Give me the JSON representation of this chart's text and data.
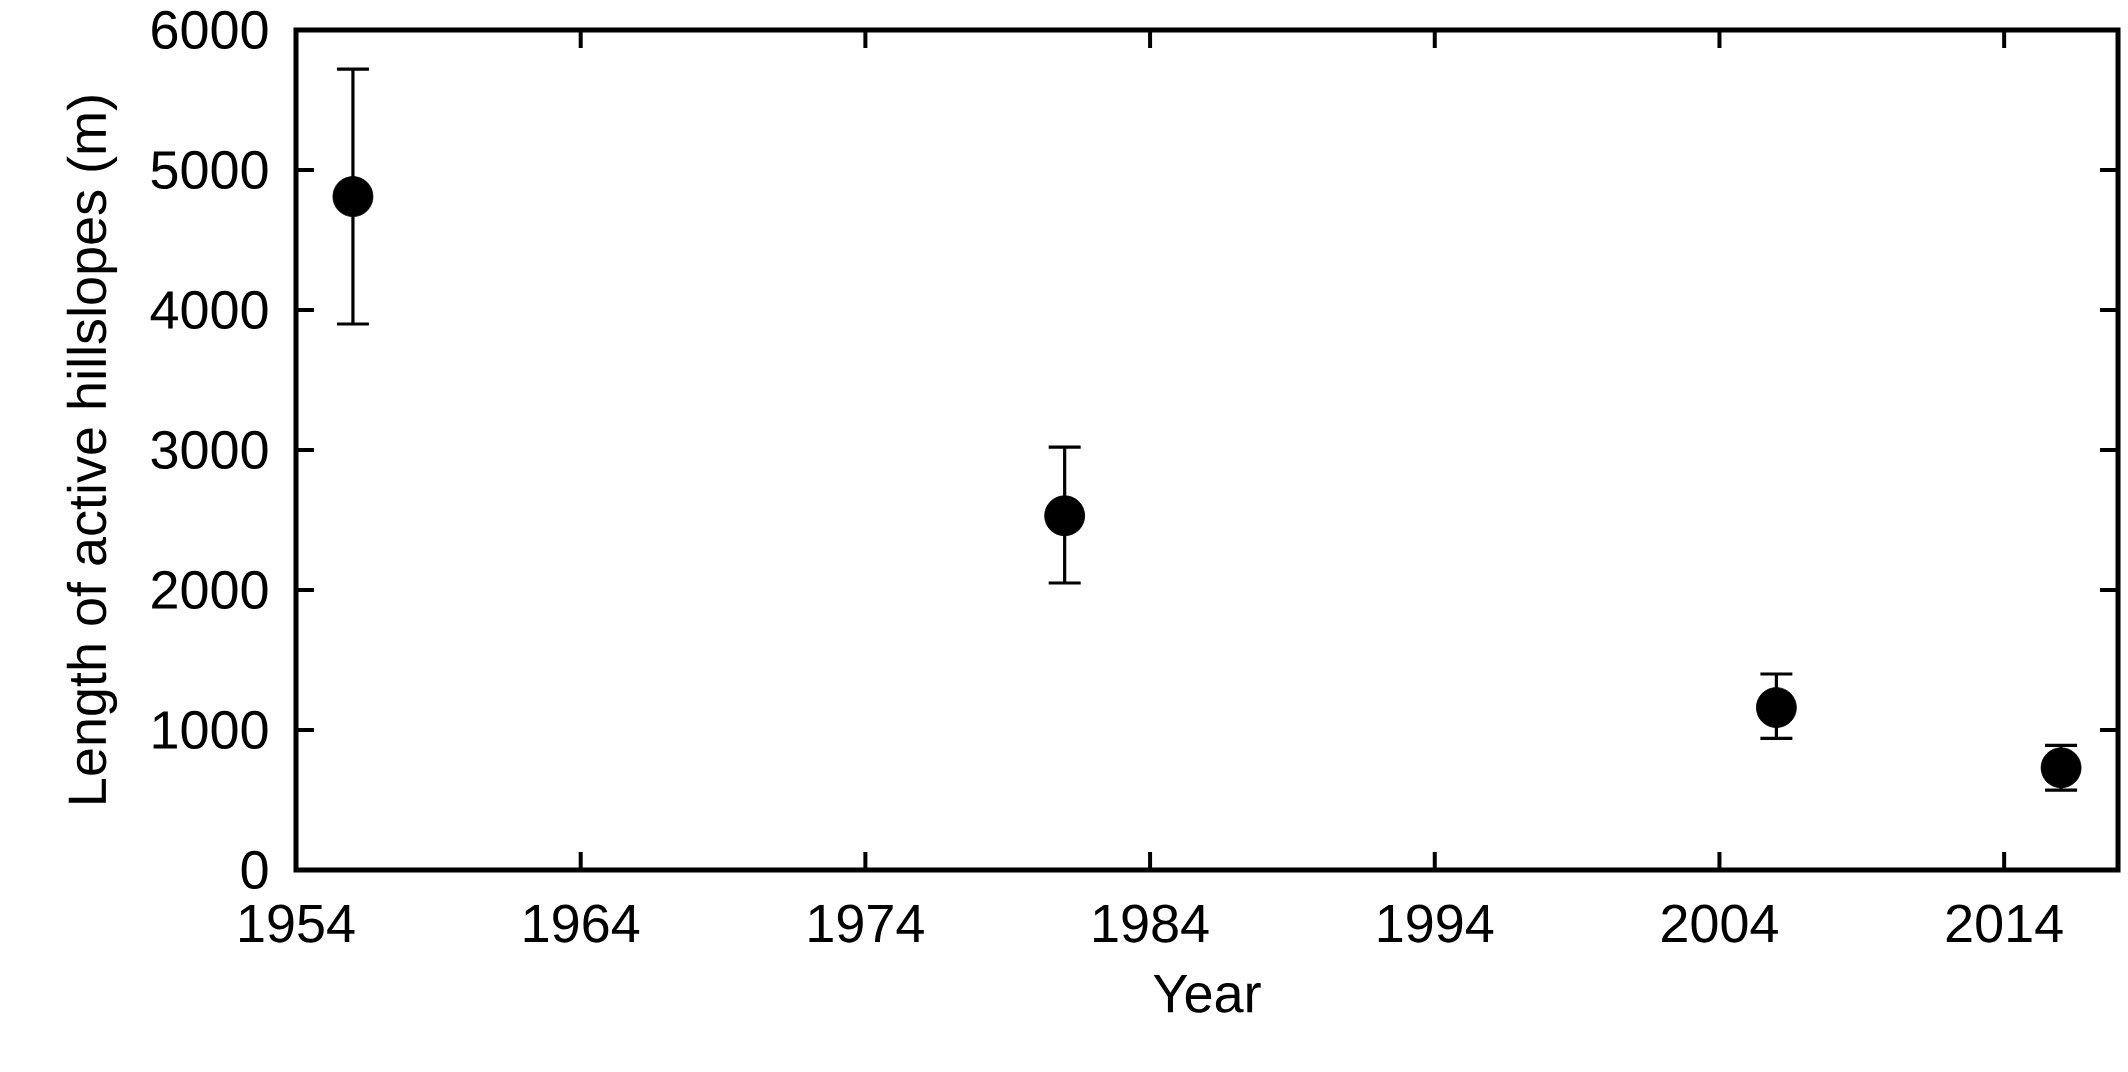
{
  "chart_data": {
    "type": "scatter",
    "xlabel": "Year",
    "ylabel": "Length of active hillslopes (m)",
    "x": [
      1956,
      1981,
      2006,
      2016
    ],
    "values": [
      4810,
      2530,
      1160,
      730
    ],
    "errors": [
      [
        3900,
        5720
      ],
      [
        2050,
        3020
      ],
      [
        940,
        1400
      ],
      [
        570,
        890
      ]
    ],
    "color": "#000000",
    "marker": "circle",
    "xlim": [
      1954,
      2018
    ],
    "xticks": [
      1954,
      1964,
      1974,
      1984,
      1994,
      2004,
      2014
    ],
    "ylim": [
      0,
      6000
    ],
    "yticks": [
      0,
      1000,
      2000,
      3000,
      4000,
      5000,
      6000
    ],
    "grid": false
  }
}
